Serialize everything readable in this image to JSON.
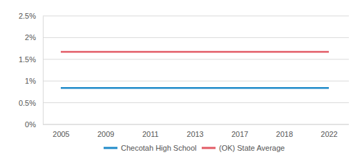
{
  "chart_data": {
    "type": "line",
    "categories": [
      "2005",
      "2009",
      "2011",
      "2013",
      "2017",
      "2018",
      "2022"
    ],
    "series": [
      {
        "name": "Checotah High School",
        "color": "#1f8ac9",
        "values": [
          0.84,
          0.84,
          0.84,
          0.84,
          0.84,
          0.84,
          0.84
        ]
      },
      {
        "name": "(OK) State Average",
        "color": "#e25a64",
        "values": [
          1.67,
          1.67,
          1.67,
          1.67,
          1.67,
          1.67,
          1.67
        ]
      }
    ],
    "ylim": [
      0,
      2.5
    ],
    "yticks": [
      {
        "value": 0,
        "label": "0%"
      },
      {
        "value": 0.5,
        "label": "0.5%"
      },
      {
        "value": 1,
        "label": "1%"
      },
      {
        "value": 1.5,
        "label": "1.5%"
      },
      {
        "value": 2,
        "label": "2%"
      },
      {
        "value": 2.5,
        "label": "2.5%"
      }
    ],
    "grid": true,
    "legend": "bottom"
  }
}
